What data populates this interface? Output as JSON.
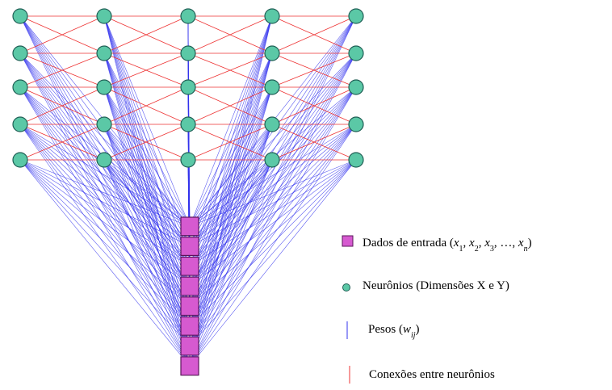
{
  "diagram": {
    "grid": {
      "columns": 5,
      "rows": 5
    },
    "input_node_count": 8,
    "colors": {
      "neuron_fill": "#5bc8a6",
      "neuron_stroke": "#1f5f55",
      "input_fill": "#d65ad0",
      "input_stroke": "#5a145a",
      "weight_line": "#3333ee",
      "connection_line": "#ee3333"
    },
    "legend": {
      "input": {
        "label": "Dados de entrada",
        "formula_vars": [
          "x",
          "x",
          "x",
          "x"
        ],
        "formula_subs": [
          "1",
          "2",
          "3",
          "n"
        ],
        "formula_dots": "…"
      },
      "neuron": {
        "label": "Neurônios (Dimensões X e Y)"
      },
      "weights": {
        "label": "Pesos",
        "var": "w",
        "sub": "ij"
      },
      "connections": {
        "label": "Conexões entre neurônios"
      }
    }
  }
}
